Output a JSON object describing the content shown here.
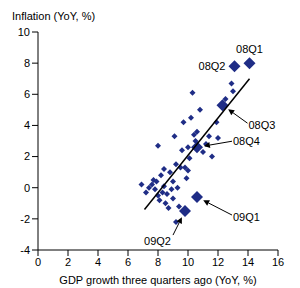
{
  "chart_data": {
    "type": "scatter",
    "x_label": "GDP growth three quarters ago (YoY, %)",
    "y_label": "Inflation (YoY, %)",
    "xlim": [
      0,
      16
    ],
    "xticks": [
      0,
      2,
      4,
      6,
      8,
      10,
      12,
      14,
      16
    ],
    "ylim": [
      -4,
      10
    ],
    "yticks": [
      -4,
      -2,
      0,
      2,
      4,
      6,
      8,
      10
    ],
    "grid": false,
    "series": [
      {
        "type": "scatter",
        "color": "#1f2d86",
        "marker": "diamond",
        "x": [
          6.9,
          7.2,
          7.4,
          7.6,
          7.7,
          7.8,
          7.9,
          8.0,
          8.0,
          8.1,
          8.2,
          8.3,
          8.4,
          8.4,
          8.5,
          8.6,
          8.7,
          8.8,
          8.9,
          9.0,
          9.0,
          9.1,
          9.2,
          9.2,
          9.3,
          9.4,
          9.5,
          9.6,
          9.7,
          9.8,
          9.9,
          10.0,
          10.0,
          10.1,
          10.2,
          10.3,
          10.4,
          10.5,
          10.6,
          10.8,
          11.0,
          11.2,
          11.4,
          11.6,
          11.9,
          12.0,
          12.5,
          12.9,
          13.0
        ],
        "values": [
          0.2,
          -0.3,
          0.0,
          0.2,
          0.5,
          -0.1,
          0.4,
          2.7,
          -0.5,
          -0.8,
          0.8,
          -0.3,
          0.1,
          1.2,
          -1.0,
          -0.4,
          -1.3,
          1.0,
          -0.1,
          0.4,
          -0.7,
          3.3,
          1.5,
          -2.2,
          0.0,
          -1.2,
          1.3,
          2.4,
          4.2,
          1.3,
          0.6,
          1.1,
          2.6,
          1.9,
          4.5,
          6.1,
          3.4,
          3.0,
          3.6,
          5.0,
          2.3,
          2.8,
          3.3,
          2.0,
          4.2,
          3.2,
          5.7,
          6.7,
          6.2
        ]
      },
      {
        "type": "scatter",
        "color": "#1f2d86",
        "marker": "diamond",
        "labels": [
          "08Q1",
          "08Q2",
          "08Q3",
          "08Q4",
          "09Q1",
          "09Q2"
        ],
        "x": [
          14.1,
          13.1,
          12.3,
          10.6,
          10.6,
          9.8
        ],
        "values": [
          8.0,
          7.8,
          5.3,
          2.6,
          -0.6,
          -1.5
        ]
      },
      {
        "type": "line",
        "color": "#000000",
        "line_style": "solid",
        "x": [
          7.1,
          14.1
        ],
        "values": [
          -1.4,
          7.0
        ]
      }
    ]
  }
}
